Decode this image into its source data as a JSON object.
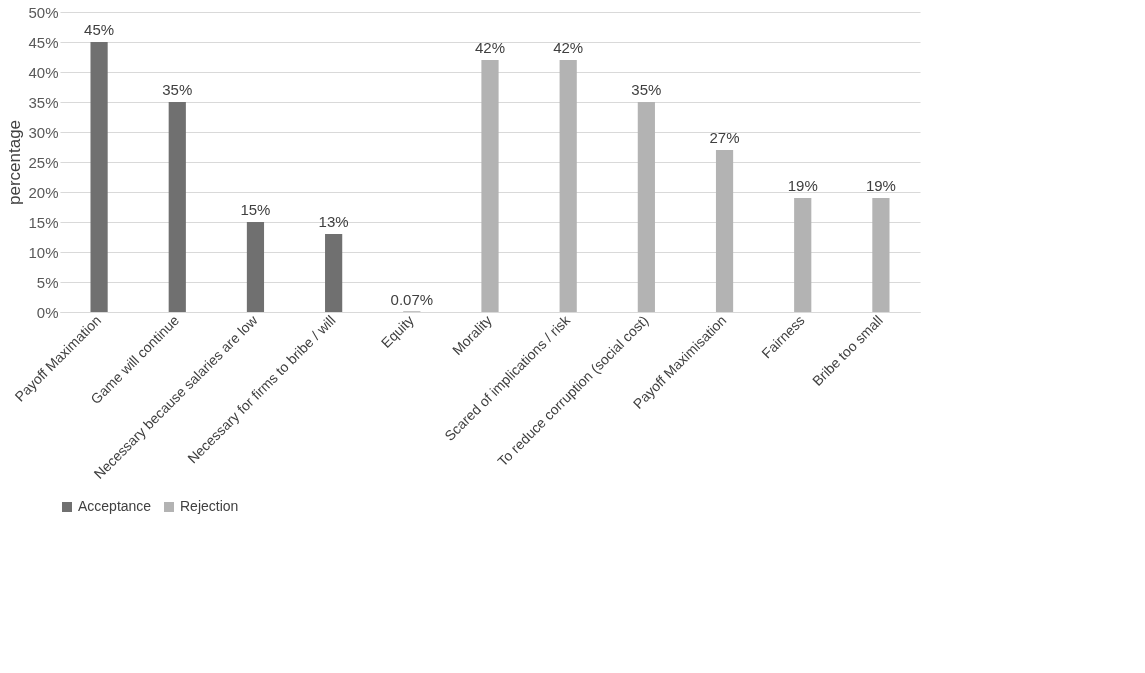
{
  "chart_data": {
    "type": "bar",
    "categories": [
      "Payoff Maximation",
      "Game will continue",
      "Necessary because salaries are low",
      "Necessary for firms to bribe / will",
      "Equity",
      "Morality",
      "Scared of implications / risk",
      "To reduce corruption (social cost)",
      "Payoff Maximisation",
      "Fairness",
      "Bribe too small"
    ],
    "series": [
      {
        "name": "Acceptance",
        "color": "#707070",
        "values": [
          45,
          35,
          15,
          13,
          0.07,
          null,
          null,
          null,
          null,
          null,
          null
        ],
        "value_labels": [
          "45%",
          "35%",
          "15%",
          "13%",
          "0.07%",
          null,
          null,
          null,
          null,
          null,
          null
        ]
      },
      {
        "name": "Rejection",
        "color": "#b3b3b3",
        "values": [
          null,
          null,
          null,
          null,
          null,
          42,
          42,
          35,
          27,
          19,
          19
        ],
        "value_labels": [
          null,
          null,
          null,
          null,
          null,
          "42%",
          "42%",
          "35%",
          "27%",
          "19%",
          "19%"
        ]
      }
    ],
    "ylabel": "percentage",
    "ylim": [
      0,
      50
    ],
    "yticks": [
      {
        "value": 0,
        "label": "0%"
      },
      {
        "value": 5,
        "label": "5%"
      },
      {
        "value": 10,
        "label": "10%"
      },
      {
        "value": 15,
        "label": "15%"
      },
      {
        "value": 20,
        "label": "20%"
      },
      {
        "value": 25,
        "label": "25%"
      },
      {
        "value": 30,
        "label": "30%"
      },
      {
        "value": 35,
        "label": "35%"
      },
      {
        "value": 40,
        "label": "40%"
      },
      {
        "value": 45,
        "label": "45%"
      },
      {
        "value": 50,
        "label": "50%"
      }
    ],
    "grid": "y",
    "legend": "bottom"
  }
}
